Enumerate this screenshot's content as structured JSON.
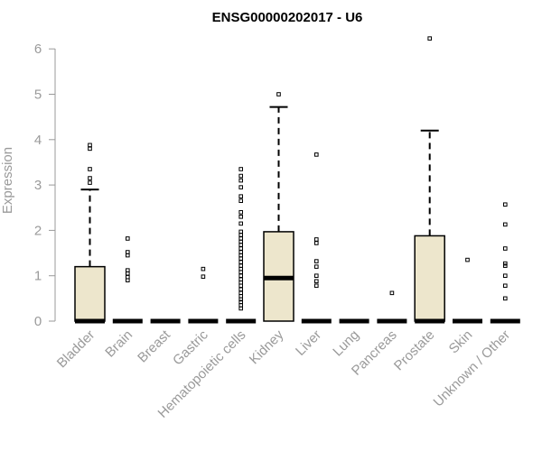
{
  "chart_data": {
    "type": "boxplot",
    "title": "ENSG00000202017 - U6",
    "xlabel": "",
    "ylabel": "Expression",
    "ylim": [
      0,
      6.3
    ],
    "yticks": [
      0,
      1,
      2,
      3,
      4,
      5,
      6
    ],
    "ytick_labels": [
      "0",
      "1",
      "2",
      "3",
      "4",
      "5",
      "6"
    ],
    "grid": false,
    "colors": {
      "box_fill": "#ede6cc",
      "stroke": "#000000",
      "axis": "#9a9a9a"
    },
    "categories": [
      "Bladder",
      "Brain",
      "Breast",
      "Gastric",
      "Hematopoietic cells",
      "Kidney",
      "Liver",
      "Lung",
      "Pancreas",
      "Prostate",
      "Skin",
      "Unknown / Other"
    ],
    "boxes": [
      {
        "category": "Bladder",
        "min": 0,
        "q1": 0,
        "median": 0,
        "q3": 1.2,
        "max": 2.9,
        "outliers": [
          3.05,
          3.15,
          3.35,
          3.8,
          3.88
        ]
      },
      {
        "category": "Brain",
        "min": 0,
        "q1": 0,
        "median": 0,
        "q3": 0,
        "max": 0,
        "outliers": [
          0.9,
          0.97,
          1.05,
          1.12,
          1.45,
          1.52,
          1.82
        ]
      },
      {
        "category": "Breast",
        "min": 0,
        "q1": 0,
        "median": 0,
        "q3": 0,
        "max": 0,
        "outliers": []
      },
      {
        "category": "Gastric",
        "min": 0,
        "q1": 0,
        "median": 0,
        "q3": 0,
        "max": 0,
        "outliers": [
          0.98,
          1.15
        ]
      },
      {
        "category": "Hematopoietic cells",
        "min": 0,
        "q1": 0,
        "median": 0,
        "q3": 0,
        "max": 0,
        "outliers": [
          0.28,
          0.35,
          0.42,
          0.48,
          0.55,
          0.62,
          0.7,
          0.78,
          0.85,
          0.92,
          1.0,
          1.08,
          1.15,
          1.22,
          1.3,
          1.38,
          1.45,
          1.52,
          1.6,
          1.68,
          1.75,
          1.82,
          1.9,
          1.97,
          2.15,
          2.3,
          2.4,
          2.65,
          2.75,
          2.95,
          3.1,
          3.2,
          3.35
        ]
      },
      {
        "category": "Kidney",
        "min": 0,
        "q1": 0,
        "median": 0.95,
        "q3": 1.97,
        "max": 4.72,
        "outliers": [
          5.0
        ]
      },
      {
        "category": "Liver",
        "min": 0,
        "q1": 0,
        "median": 0,
        "q3": 0,
        "max": 0,
        "outliers": [
          0.78,
          0.88,
          1.0,
          1.2,
          1.32,
          1.72,
          1.8,
          3.67
        ]
      },
      {
        "category": "Lung",
        "min": 0,
        "q1": 0,
        "median": 0,
        "q3": 0,
        "max": 0,
        "outliers": []
      },
      {
        "category": "Pancreas",
        "min": 0,
        "q1": 0,
        "median": 0,
        "q3": 0,
        "max": 0,
        "outliers": [
          0.62
        ]
      },
      {
        "category": "Prostate",
        "min": 0,
        "q1": 0,
        "median": 0,
        "q3": 1.88,
        "max": 4.2,
        "outliers": [
          6.23
        ]
      },
      {
        "category": "Skin",
        "min": 0,
        "q1": 0,
        "median": 0,
        "q3": 0,
        "max": 0,
        "outliers": [
          1.35
        ]
      },
      {
        "category": "Unknown / Other",
        "min": 0,
        "q1": 0,
        "median": 0,
        "q3": 0,
        "max": 0,
        "outliers": [
          0.5,
          0.78,
          1.0,
          1.22,
          1.27,
          1.6,
          2.13,
          2.57
        ]
      }
    ]
  }
}
